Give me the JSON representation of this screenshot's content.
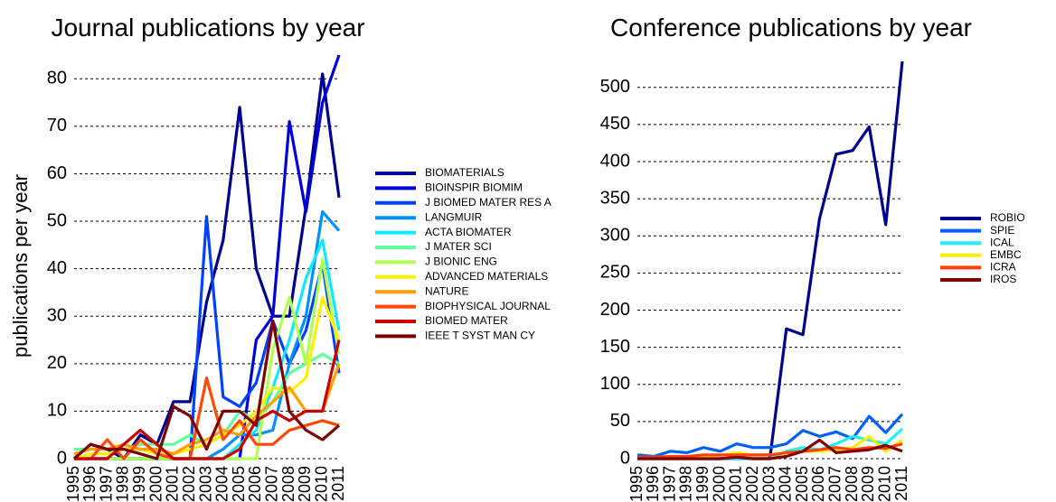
{
  "chart_data": [
    {
      "type": "line",
      "title": "Journal publications by year",
      "y_label": "publications per year",
      "categories": [
        "1995",
        "1996",
        "1997",
        "1998",
        "1999",
        "2000",
        "2001",
        "2002",
        "2003",
        "2004",
        "2005",
        "2006",
        "2007",
        "2008",
        "2009",
        "2010",
        "2011"
      ],
      "ylim": [
        0,
        85
      ],
      "yticks": [
        0,
        10,
        20,
        30,
        40,
        50,
        60,
        70,
        80
      ],
      "grid": true,
      "series": [
        {
          "name": "BIOMATERIALS",
          "color": "#00008f",
          "values": [
            0,
            3,
            2,
            0,
            5,
            3,
            12,
            12,
            33,
            46,
            74,
            40,
            30,
            30,
            53,
            81,
            55
          ]
        },
        {
          "name": "BIOINSPIR BIOMIM",
          "color": "#0000d8",
          "values": [
            0,
            0,
            0,
            0,
            0,
            0,
            0,
            0,
            0,
            0,
            0,
            25,
            30,
            71,
            52,
            75,
            85
          ]
        },
        {
          "name": "J BIOMED MATER RES A",
          "color": "#0040ff",
          "values": [
            0,
            0,
            0,
            0,
            0,
            0,
            0,
            0,
            51,
            13,
            11,
            16,
            29,
            20,
            27,
            41,
            18
          ]
        },
        {
          "name": "LANGMUIR",
          "color": "#0090ff",
          "values": [
            0,
            0,
            0,
            0,
            0,
            0,
            0,
            0,
            0,
            2,
            5,
            5,
            6,
            20,
            30,
            52,
            48
          ]
        },
        {
          "name": "ACTA BIOMATER",
          "color": "#10e8ff",
          "values": [
            0,
            0,
            0,
            0,
            0,
            0,
            0,
            0,
            0,
            0,
            3,
            6,
            15,
            25,
            38,
            46,
            27
          ]
        },
        {
          "name": "J MATER SCI",
          "color": "#60ffa0",
          "values": [
            2,
            2,
            2,
            2,
            3,
            3,
            3,
            5,
            3,
            5,
            10,
            8,
            12,
            18,
            20,
            22,
            20
          ]
        },
        {
          "name": "J BIONIC ENG",
          "color": "#b0ff50",
          "values": [
            0,
            0,
            0,
            0,
            0,
            0,
            0,
            0,
            0,
            0,
            0,
            0,
            23,
            34,
            20,
            42,
            22
          ]
        },
        {
          "name": "ADVANCED MATERIALS",
          "color": "#ffef00",
          "values": [
            0,
            1,
            1,
            2,
            2,
            1,
            1,
            2,
            3,
            5,
            7,
            10,
            15,
            14,
            17,
            34,
            25
          ]
        },
        {
          "name": "NATURE",
          "color": "#ffa000",
          "values": [
            1,
            2,
            2,
            3,
            2,
            2,
            1,
            3,
            4,
            6,
            5,
            9,
            12,
            15,
            10,
            10,
            20
          ]
        },
        {
          "name": "BIOPHYSICAL JOURNAL",
          "color": "#ff4800",
          "values": [
            0,
            0,
            4,
            0,
            4,
            1,
            0,
            0,
            17,
            4,
            8,
            3,
            3,
            6,
            7,
            8,
            7
          ]
        },
        {
          "name": "BIOMED MATER",
          "color": "#cc0000",
          "values": [
            0,
            0,
            0,
            3,
            6,
            3,
            0,
            0,
            0,
            0,
            2,
            8,
            10,
            8,
            10,
            10,
            25
          ]
        },
        {
          "name": "IEEE T SYST MAN CY",
          "color": "#800000",
          "values": [
            0,
            3,
            2,
            2,
            1,
            0,
            11,
            9,
            2,
            10,
            10,
            7,
            29,
            10,
            6,
            4,
            7
          ]
        }
      ]
    },
    {
      "type": "line",
      "title": "Conference publications by year",
      "categories": [
        "1995",
        "1996",
        "1997",
        "1998",
        "1999",
        "2000",
        "2001",
        "2002",
        "2003",
        "2004",
        "2005",
        "2006",
        "2007",
        "2008",
        "2009",
        "2010",
        "2011"
      ],
      "ylim": [
        0,
        535
      ],
      "yticks": [
        0,
        50,
        100,
        150,
        200,
        250,
        300,
        350,
        400,
        450,
        500
      ],
      "grid": true,
      "series": [
        {
          "name": "ROBIO",
          "color": "#00008f",
          "values": [
            0,
            0,
            0,
            0,
            0,
            0,
            0,
            0,
            0,
            175,
            167,
            323,
            410,
            415,
            447,
            315,
            535
          ]
        },
        {
          "name": "SPIE",
          "color": "#0060ff",
          "values": [
            5,
            3,
            10,
            8,
            15,
            10,
            20,
            15,
            15,
            20,
            38,
            30,
            36,
            27,
            57,
            35,
            60
          ]
        },
        {
          "name": "ICAL",
          "color": "#20f0f0",
          "values": [
            0,
            0,
            0,
            0,
            0,
            0,
            0,
            0,
            0,
            10,
            15,
            12,
            20,
            30,
            25,
            20,
            40
          ]
        },
        {
          "name": "EMBC",
          "color": "#f8f000",
          "values": [
            0,
            0,
            0,
            0,
            2,
            5,
            8,
            5,
            5,
            8,
            10,
            10,
            12,
            15,
            30,
            10,
            25
          ]
        },
        {
          "name": "ICRA",
          "color": "#ff4000",
          "values": [
            2,
            2,
            3,
            3,
            5,
            5,
            5,
            5,
            5,
            8,
            10,
            12,
            15,
            12,
            15,
            14,
            20
          ]
        },
        {
          "name": "IROS",
          "color": "#800000",
          "values": [
            0,
            0,
            0,
            0,
            0,
            0,
            2,
            0,
            0,
            3,
            10,
            25,
            8,
            10,
            12,
            18,
            10
          ]
        }
      ]
    }
  ]
}
